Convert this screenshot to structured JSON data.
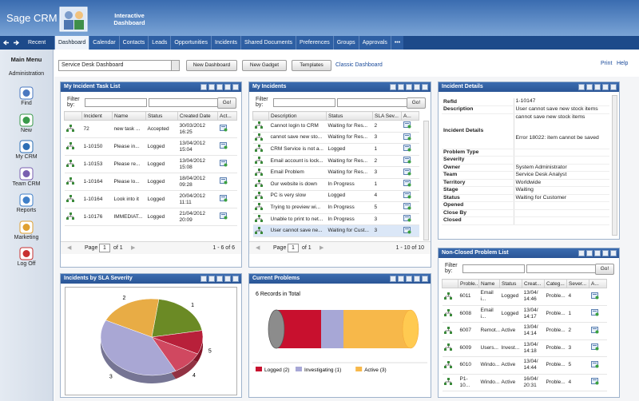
{
  "header": {
    "brand": "Sage CRM",
    "title": "Interactive Dashboard"
  },
  "nav": {
    "recent": "Recent",
    "active_tab": 0,
    "tabs": [
      "Dashboard",
      "Calendar",
      "Contacts",
      "Leads",
      "Opportunities",
      "Incidents",
      "Shared Documents",
      "Preferences",
      "Groups",
      "Approvals",
      "•••"
    ]
  },
  "sidebar": {
    "title": "Main Menu",
    "admin": "Administration",
    "items": [
      "Find",
      "New",
      "My CRM",
      "Team CRM",
      "Reports",
      "Marketing",
      "Log Off"
    ]
  },
  "toolbar": {
    "dashboard": "Service Desk Dashboard",
    "buttons": [
      "New Dashboard",
      "New Gadget",
      "Templates"
    ],
    "link": "Classic Dashboard",
    "print": "Print",
    "help": "Help"
  },
  "task_list": {
    "title": "My Incident Task List",
    "filter_label": "Filter by:",
    "go": "Go!",
    "columns": [
      "Incident",
      "Name",
      "Status",
      "Created Date",
      "Act..."
    ],
    "rows": [
      [
        "72",
        "new task ...",
        "Accepted",
        "30/03/2012 16:25"
      ],
      [
        "1-10150",
        "Please in...",
        "Logged",
        "13/04/2012 15:04"
      ],
      [
        "1-10153",
        "Please re...",
        "Logged",
        "13/04/2012 15:08"
      ],
      [
        "1-10164",
        "Please lo...",
        "Logged",
        "18/04/2012 09:28"
      ],
      [
        "1-10164",
        "Look into it",
        "Logged",
        "20/04/2012 11:11"
      ],
      [
        "1-10176",
        "IMMEDIAT...",
        "Logged",
        "21/04/2012 20:09"
      ]
    ],
    "pager": {
      "page": "Page",
      "current": "1",
      "of": "of 1",
      "summary": "1 - 6 of 6"
    }
  },
  "my_incidents": {
    "title": "My Incidents",
    "filter_label": "Filter by:",
    "go": "Go!",
    "columns": [
      "Description",
      "Status",
      "SLA Sev...",
      "A..."
    ],
    "rows": [
      [
        "Cannot login to CRM",
        "Waiting for Res...",
        "2"
      ],
      [
        "cannot save new sto...",
        "Waiting for Res...",
        "3"
      ],
      [
        "CRM Service is not a...",
        "Logged",
        "1"
      ],
      [
        "Email account is lock...",
        "Waiting for Res...",
        "2"
      ],
      [
        "Email Problem",
        "Waiting for Res...",
        "3"
      ],
      [
        "Our website is down",
        "In Progress",
        "1"
      ],
      [
        "PC is very slow",
        "Logged",
        "4"
      ],
      [
        "Trying to preview wi...",
        "In Progress",
        "5"
      ],
      [
        "Unable to print to net...",
        "In Progress",
        "3"
      ],
      [
        "User cannot save ne...",
        "Waiting for Cust...",
        "3"
      ]
    ],
    "pager": {
      "page": "Page",
      "current": "1",
      "of": "of 1",
      "summary": "1 - 10 of 10"
    }
  },
  "incident_details": {
    "title": "Incident Details",
    "fields": [
      {
        "label": "RefId",
        "value": "1-10147"
      },
      {
        "label": "Description",
        "value": "User cannot save new stock items"
      },
      {
        "label": "Incident Details",
        "lines": [
          "cannot save new stock items",
          "Error 18022: item cannot be saved"
        ]
      },
      {
        "label": "Problem Type"
      },
      {
        "label": "Severity"
      },
      {
        "label": "Owner",
        "value": "System Administrator"
      },
      {
        "label": "Team",
        "value": "Service Desk Analyst"
      },
      {
        "label": "Territory",
        "value": "Worldwide"
      },
      {
        "label": "Stage",
        "value": "Waiting"
      },
      {
        "label": "Status",
        "value": "Waiting for Customer"
      },
      {
        "label": "Opened"
      },
      {
        "label": "Close By"
      },
      {
        "label": "Closed"
      }
    ]
  },
  "problem_list": {
    "title": "Non-Closed Problem List",
    "filter_label": "Filter by:",
    "go": "Go!",
    "columns": [
      "Proble...",
      "Name",
      "Status",
      "Creat...",
      "Categ...",
      "Sever...",
      "A..."
    ],
    "rows": [
      [
        "6011",
        "Email i...",
        "Logged",
        "13/04/ 14:46",
        "Proble...",
        "4"
      ],
      [
        "6008",
        "Email i...",
        "Logged",
        "13/04/ 14:17",
        "Proble...",
        "1"
      ],
      [
        "6007",
        "Remot...",
        "Active",
        "13/04/ 14:14",
        "Proble...",
        "2"
      ],
      [
        "6009",
        "Users...",
        "Invest...",
        "13/04/ 14:18",
        "Proble...",
        "3"
      ],
      [
        "6010",
        "Windo...",
        "Active",
        "13/04/ 14:44",
        "Proble...",
        "5"
      ],
      [
        "P1-10...",
        "Windo...",
        "Active",
        "16/04/ 20:31",
        "Proble...",
        "4"
      ]
    ]
  },
  "chart_data": [
    {
      "type": "pie",
      "title": "Incidents by SLA Severity",
      "categories": [
        "1",
        "2",
        "3",
        "4",
        "5"
      ],
      "values": [
        2,
        2,
        4,
        1,
        1
      ],
      "colors": [
        "#6b8a25",
        "#e8ac45",
        "#a9a7d4",
        "#d04860",
        "#b8203a"
      ]
    },
    {
      "type": "bar",
      "title": "Current Problems",
      "subtitle": "6 Records in Total",
      "stacked": true,
      "series": [
        {
          "name": "Logged (2)",
          "color": "#c8102e",
          "values": [
            2
          ]
        },
        {
          "name": "Investigating (1)",
          "color": "#a7a7d6",
          "values": [
            1
          ]
        },
        {
          "name": "Active (3)",
          "color": "#f7b84a",
          "values": [
            3
          ]
        }
      ]
    }
  ]
}
